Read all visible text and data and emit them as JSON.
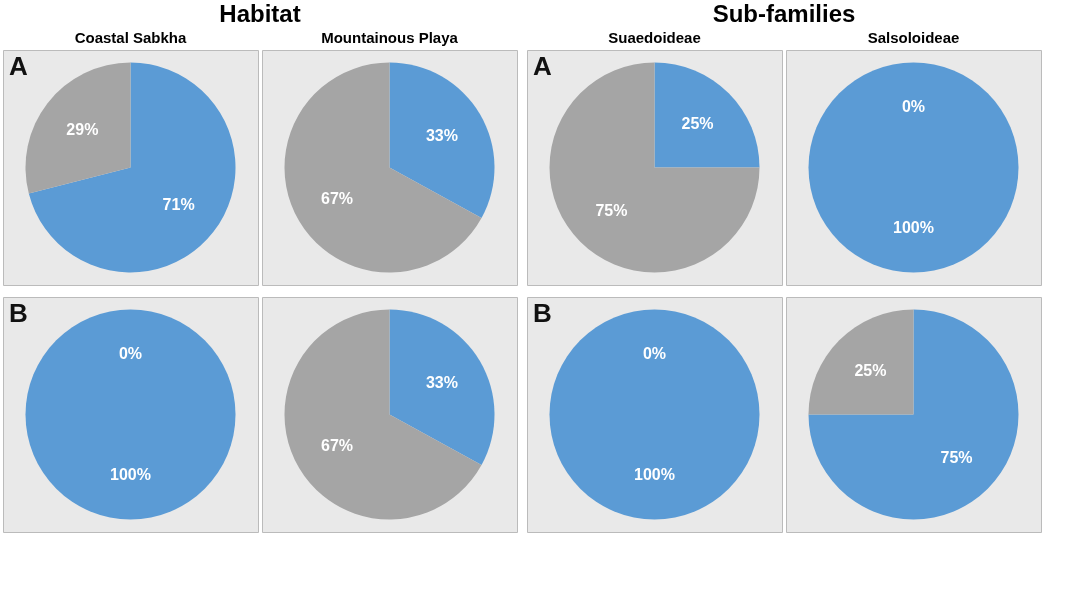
{
  "chart_data": [
    {
      "type": "pie",
      "title": "Coastal Sabkha",
      "annotations": [
        "Habitat",
        "A"
      ],
      "categories": [
        null,
        null
      ],
      "values": [
        71,
        29
      ],
      "colors": [
        "#5b9bd5",
        "#a5a5a5"
      ],
      "value_labels": [
        "71%",
        "29%"
      ]
    },
    {
      "type": "pie",
      "title": "Mountainous Playa",
      "categories": [
        null,
        null
      ],
      "values": [
        33,
        67
      ],
      "colors": [
        "#5b9bd5",
        "#a5a5a5"
      ],
      "value_labels": [
        "33%",
        "67%"
      ]
    },
    {
      "type": "pie",
      "title": "Suaedoideae",
      "annotations": [
        "Sub-families",
        "A"
      ],
      "categories": [
        null,
        null
      ],
      "values": [
        25,
        75
      ],
      "colors": [
        "#5b9bd5",
        "#a5a5a5"
      ],
      "value_labels": [
        "25%",
        "75%"
      ]
    },
    {
      "type": "pie",
      "title": "Salsoloideae",
      "categories": [
        null,
        null
      ],
      "values": [
        100,
        0
      ],
      "colors": [
        "#5b9bd5",
        "#a5a5a5"
      ],
      "value_labels": [
        "100%",
        "0%"
      ]
    },
    {
      "type": "pie",
      "annotations": [
        "B"
      ],
      "categories": [
        null,
        null
      ],
      "values": [
        100,
        0
      ],
      "colors": [
        "#5b9bd5",
        "#a5a5a5"
      ],
      "value_labels": [
        "100%",
        "0%"
      ]
    },
    {
      "type": "pie",
      "categories": [
        null,
        null
      ],
      "values": [
        33,
        67
      ],
      "colors": [
        "#5b9bd5",
        "#a5a5a5"
      ],
      "value_labels": [
        "33%",
        "67%"
      ]
    },
    {
      "type": "pie",
      "annotations": [
        "B"
      ],
      "categories": [
        null,
        null
      ],
      "values": [
        100,
        0
      ],
      "colors": [
        "#5b9bd5",
        "#a5a5a5"
      ],
      "value_labels": [
        "100%",
        "0%"
      ]
    },
    {
      "type": "pie",
      "categories": [
        null,
        null
      ],
      "values": [
        75,
        25
      ],
      "colors": [
        "#5b9bd5",
        "#a5a5a5"
      ],
      "value_labels": [
        "75%",
        "25%"
      ]
    }
  ]
}
